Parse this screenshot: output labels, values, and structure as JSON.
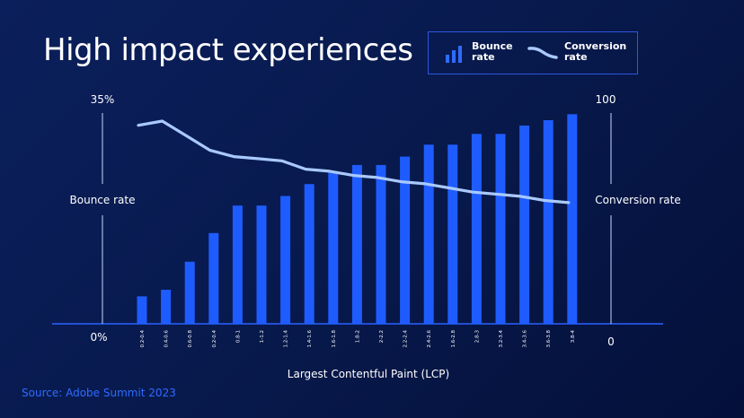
{
  "page": {
    "title": "High impact experiences",
    "source": "Source: Adobe Summit 2023"
  },
  "legend": {
    "bounce_label": "Bounce rate",
    "conversion_label": "Conversion rate",
    "bounce_icon": "bar-chart-icon",
    "conversion_icon": "line-icon"
  },
  "colors": {
    "bar": "#1f5cff",
    "line": "#a9c9ff",
    "axis": "#2a62ff",
    "accent_text": "#2f6bff"
  },
  "chart_data": {
    "type": "bar+line",
    "title": "High impact experiences",
    "xlabel": "Largest Contentful Paint (LCP)",
    "categories": [
      "0.2-0.4",
      "0.4-0.6",
      "0.6-0.8",
      "0.2-0.4",
      "0.8-1",
      "1-1.2",
      "1.2-1.4",
      "1.4-1.6",
      "1.6-1.8",
      "1.8-2",
      "2-2.2",
      "2.2-2.4",
      "2.4-2.6",
      "1.6-2.8",
      "2.8-3",
      "3.2-3.4",
      "3.4-3.6",
      "3.6-3.8",
      "3.8-4"
    ],
    "series": [
      {
        "name": "Bounce rate",
        "kind": "bar",
        "axis": "left",
        "values": [
          4.6,
          5.7,
          10.4,
          15.2,
          19.8,
          19.8,
          21.4,
          23.4,
          25.5,
          26.6,
          26.6,
          28.0,
          30.0,
          30.0,
          31.8,
          31.8,
          33.2,
          34.1,
          35.1
        ]
      },
      {
        "name": "Conversion rate",
        "kind": "line",
        "axis": "right",
        "values": [
          95,
          97,
          90,
          83,
          80,
          79,
          78,
          74,
          73,
          71,
          70,
          68,
          67,
          65,
          63,
          62,
          61,
          59,
          58
        ]
      }
    ],
    "left_axis": {
      "label": "Bounce rate",
      "min_label": "0%",
      "max_label": "35%",
      "range": [
        0,
        35
      ]
    },
    "right_axis": {
      "label": "Conversion rate",
      "min_label": "0",
      "max_label": "100",
      "range": [
        0,
        100
      ]
    }
  }
}
